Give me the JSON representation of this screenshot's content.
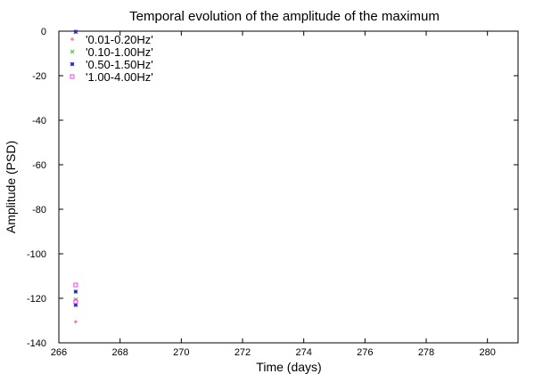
{
  "chart_data": {
    "type": "scatter",
    "title": "Temporal evolution of the amplitude of the maximum",
    "xlabel": "Time (days)",
    "ylabel": "Amplitude (PSD)",
    "xlim": [
      266,
      281
    ],
    "ylim": [
      -140,
      0
    ],
    "xticks": [
      266,
      268,
      270,
      272,
      274,
      276,
      278,
      280
    ],
    "yticks": [
      0,
      -20,
      -40,
      -60,
      -80,
      -100,
      -120,
      -140
    ],
    "grid": false,
    "legend_position": "top-left",
    "series": [
      {
        "name": "'0.01-0.20Hz'",
        "color": "#ff4aa0",
        "marker": "plus",
        "points": [
          [
            266.55,
            0
          ],
          [
            266.55,
            -130.5
          ]
        ]
      },
      {
        "name": "'0.10-1.00Hz'",
        "color": "#33cc33",
        "marker": "cross",
        "points": [
          [
            266.55,
            -120.5
          ]
        ]
      },
      {
        "name": "'0.50-1.50Hz'",
        "color": "#2222cc",
        "marker": "star",
        "points": [
          [
            266.55,
            -0.3
          ],
          [
            266.55,
            -117
          ],
          [
            266.55,
            -123
          ]
        ]
      },
      {
        "name": "'1.00-4.00Hz'",
        "color": "#ee44ee",
        "marker": "box",
        "points": [
          [
            266.55,
            -114
          ],
          [
            266.55,
            -121.5
          ]
        ]
      }
    ]
  }
}
